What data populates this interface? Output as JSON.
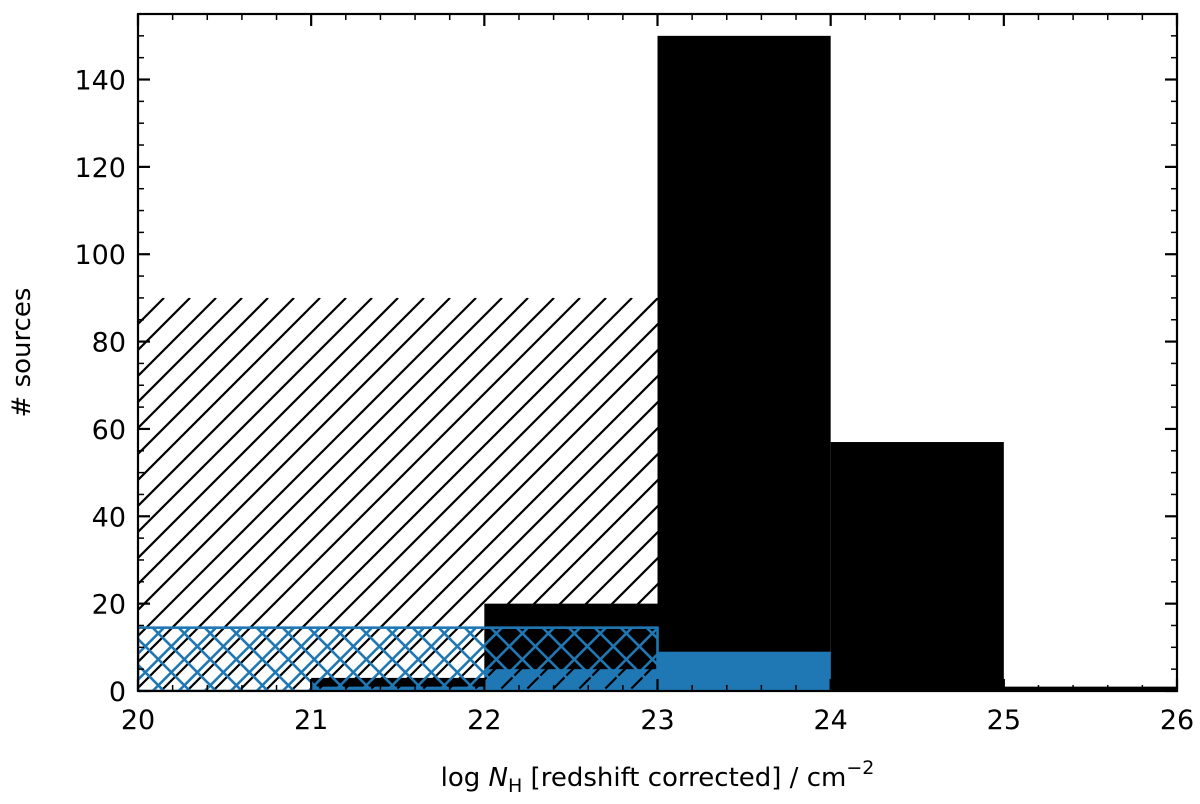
{
  "chart_data": {
    "type": "bar",
    "xlabel_prefix": "log ",
    "xlabel_var": "N",
    "xlabel_sub": "H",
    "xlabel_rest": " [redshift corrected] / cm",
    "xlabel_sup": "−2",
    "ylabel": "# sources",
    "xlim": [
      20,
      26
    ],
    "ylim": [
      0,
      155
    ],
    "x_ticks": [
      "20",
      "21",
      "22",
      "23",
      "24",
      "25",
      "26"
    ],
    "y_ticks": [
      "0",
      "20",
      "40",
      "60",
      "80",
      "100",
      "120",
      "140"
    ],
    "series": [
      {
        "style": "filled",
        "color": "#000000",
        "bins": [
          {
            "x0": 21,
            "x1": 22,
            "value": 3
          },
          {
            "x0": 22,
            "x1": 23,
            "value": 20
          },
          {
            "x0": 23,
            "x1": 24,
            "value": 150
          },
          {
            "x0": 24,
            "x1": 25,
            "value": 57
          },
          {
            "x0": 25,
            "x1": 26,
            "value": 1
          }
        ]
      },
      {
        "style": "filled",
        "color": "#1f77b4",
        "bins": [
          {
            "x0": 21,
            "x1": 22,
            "value": 1
          },
          {
            "x0": 22,
            "x1": 23,
            "value": 5
          },
          {
            "x0": 23,
            "x1": 24,
            "value": 9
          }
        ]
      },
      {
        "style": "hatched",
        "color": "#000000",
        "bins": [
          {
            "x0": 20,
            "x1": 23,
            "value": 90
          }
        ]
      },
      {
        "style": "crosshatched",
        "color": "#1f77b4",
        "bins": [
          {
            "x0": 20,
            "x1": 23,
            "value": 14.5
          }
        ]
      }
    ]
  }
}
